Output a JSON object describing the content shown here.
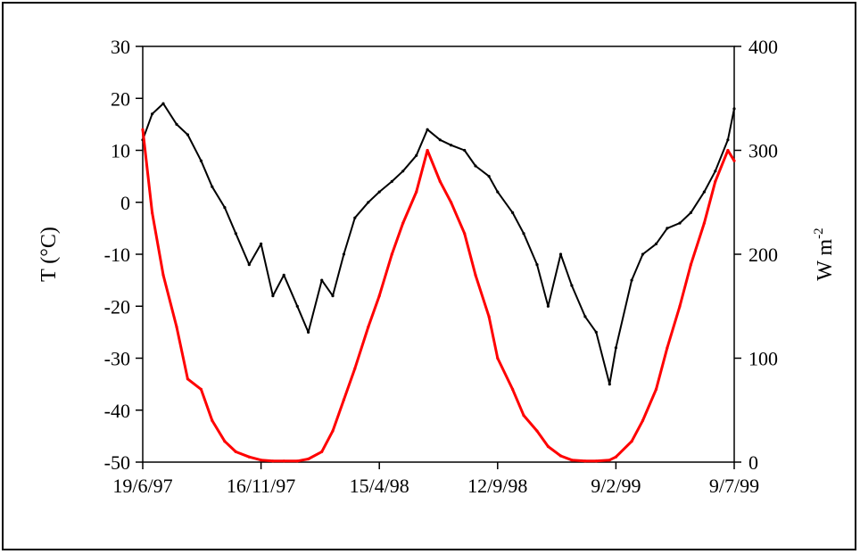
{
  "chart_data": {
    "type": "line",
    "xlabel": "",
    "ylabel_left": "T (°C)",
    "ylabel_right_base": "W m",
    "ylabel_right_sup": "-2",
    "x_ticks": [
      "19/6/97",
      "16/11/97",
      "15/4/98",
      "12/9/98",
      "9/2/99",
      "9/7/99"
    ],
    "xlim": [
      "1997-06-19",
      "1999-07-09"
    ],
    "y_left_ticks": [
      30,
      20,
      10,
      0,
      -10,
      -20,
      -30,
      -40,
      -50
    ],
    "ylim_left": [
      -50,
      30
    ],
    "y_right_ticks": [
      400,
      300,
      200,
      100,
      0
    ],
    "ylim_right": [
      0,
      400
    ],
    "grid": false,
    "legend": "none",
    "series": [
      {
        "axis": "left",
        "color": "#000000",
        "x": [
          "1997-06-19",
          "1997-07-01",
          "1997-07-15",
          "1997-08-01",
          "1997-08-15",
          "1997-09-01",
          "1997-09-15",
          "1997-10-01",
          "1997-10-15",
          "1997-11-01",
          "1997-11-16",
          "1997-12-01",
          "1997-12-15",
          "1998-01-01",
          "1998-01-15",
          "1998-02-01",
          "1998-02-15",
          "1998-03-01",
          "1998-03-15",
          "1998-04-01",
          "1998-04-15",
          "1998-05-01",
          "1998-05-15",
          "1998-06-01",
          "1998-06-15",
          "1998-07-01",
          "1998-07-15",
          "1998-08-01",
          "1998-08-15",
          "1998-09-01",
          "1998-09-12",
          "1998-10-01",
          "1998-10-15",
          "1998-11-01",
          "1998-11-15",
          "1998-12-01",
          "1998-12-15",
          "1999-01-01",
          "1999-01-15",
          "1999-02-01",
          "1999-02-09",
          "1999-03-01",
          "1999-03-15",
          "1999-04-01",
          "1999-04-15",
          "1999-05-01",
          "1999-05-15",
          "1999-06-01",
          "1999-06-15",
          "1999-07-01",
          "1999-07-09"
        ],
        "values": [
          12,
          17,
          19,
          15,
          13,
          8,
          3,
          -1,
          -6,
          -12,
          -8,
          -18,
          -14,
          -20,
          -25,
          -15,
          -18,
          -10,
          -3,
          0,
          2,
          4,
          6,
          9,
          14,
          12,
          11,
          10,
          7,
          5,
          2,
          -2,
          -6,
          -12,
          -20,
          -10,
          -16,
          -22,
          -25,
          -35,
          -28,
          -15,
          -10,
          -8,
          -5,
          -4,
          -2,
          2,
          6,
          12,
          18
        ]
      },
      {
        "axis": "right",
        "color": "#ff0000",
        "x": [
          "1997-06-19",
          "1997-07-01",
          "1997-07-15",
          "1997-08-01",
          "1997-08-15",
          "1997-09-01",
          "1997-09-15",
          "1997-10-01",
          "1997-10-15",
          "1997-11-01",
          "1997-11-16",
          "1997-12-01",
          "1997-12-15",
          "1998-01-01",
          "1998-01-15",
          "1998-02-01",
          "1998-02-15",
          "1998-03-01",
          "1998-03-15",
          "1998-04-01",
          "1998-04-15",
          "1998-05-01",
          "1998-05-15",
          "1998-06-01",
          "1998-06-15",
          "1998-07-01",
          "1998-07-15",
          "1998-08-01",
          "1998-08-15",
          "1998-09-01",
          "1998-09-12",
          "1998-10-01",
          "1998-10-15",
          "1998-11-01",
          "1998-11-15",
          "1998-12-01",
          "1998-12-15",
          "1999-01-01",
          "1999-01-15",
          "1999-02-01",
          "1999-02-09",
          "1999-03-01",
          "1999-03-15",
          "1999-04-01",
          "1999-04-15",
          "1999-05-01",
          "1999-05-15",
          "1999-06-01",
          "1999-06-15",
          "1999-07-01",
          "1999-07-09"
        ],
        "values": [
          320,
          240,
          180,
          130,
          80,
          70,
          40,
          20,
          10,
          5,
          2,
          1,
          1,
          1,
          3,
          10,
          30,
          60,
          90,
          130,
          160,
          200,
          230,
          260,
          300,
          270,
          250,
          220,
          180,
          140,
          100,
          70,
          45,
          30,
          15,
          6,
          2,
          1,
          1,
          2,
          5,
          20,
          40,
          70,
          110,
          150,
          190,
          230,
          270,
          300,
          290
        ]
      }
    ]
  }
}
